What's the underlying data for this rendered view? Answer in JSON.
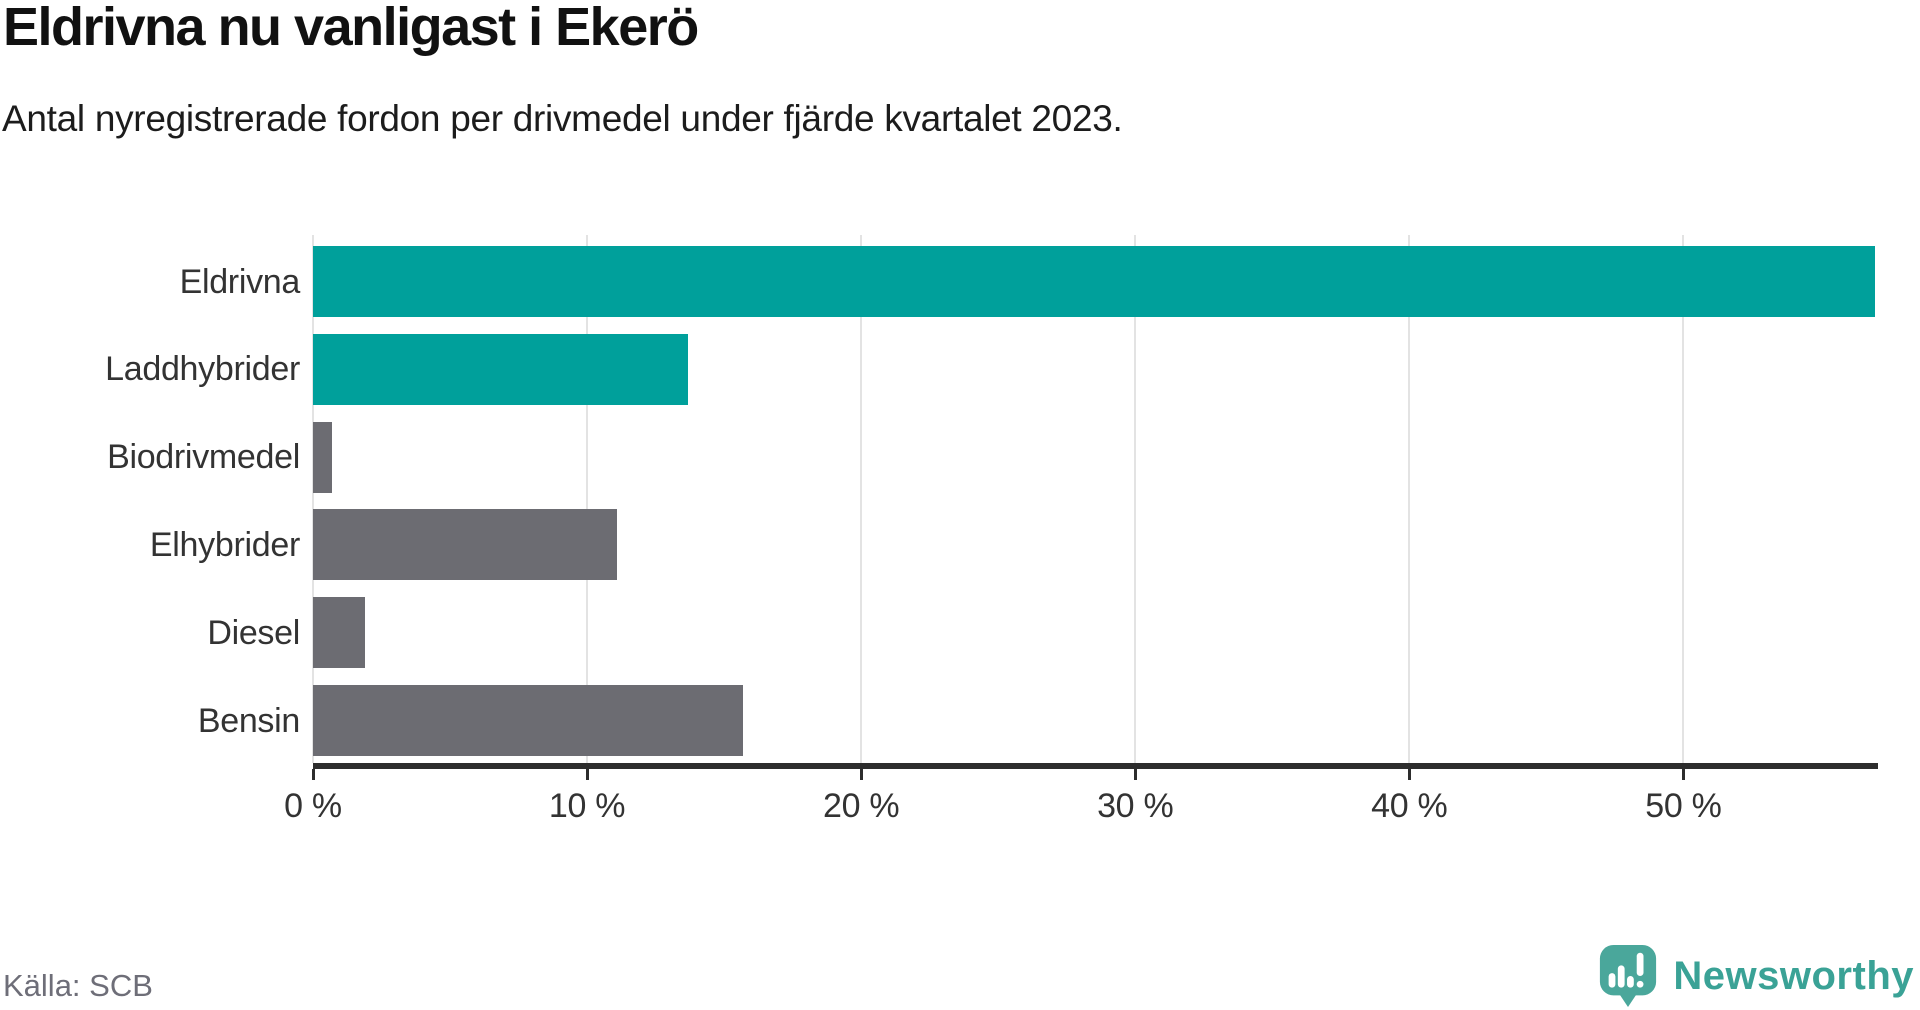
{
  "header": {
    "title": "Eldrivna nu vanligast i Ekerö",
    "subtitle": "Antal nyregistrerade fordon per drivmedel under fjärde kvartalet 2023."
  },
  "footer": {
    "source": "Källa: SCB",
    "brand": "Newsworthy"
  },
  "colors": {
    "accent_teal": "#00a09b",
    "muted_gray": "#6c6c72",
    "axis": "#2d2d2d",
    "gridline": "#e3e3e3",
    "text": "#333333",
    "source_text": "#6e6e78",
    "brand_text_teal": "#3aa296",
    "logo_teal": "#4aa79b"
  },
  "chart_data": {
    "type": "bar",
    "orientation": "horizontal",
    "title": "Eldrivna nu vanligast i Ekerö",
    "subtitle": "Antal nyregistrerade fordon per drivmedel under fjärde kvartalet 2023.",
    "categories": [
      "Eldrivna",
      "Laddhybrider",
      "Biodrivmedel",
      "Elhybrider",
      "Diesel",
      "Bensin"
    ],
    "values": [
      57.0,
      13.7,
      0.7,
      11.1,
      1.9,
      15.7
    ],
    "unit": "%",
    "bar_colors": [
      "#00a09b",
      "#00a09b",
      "#6c6c72",
      "#6c6c72",
      "#6c6c72",
      "#6c6c72"
    ],
    "xlabel": "",
    "ylabel": "",
    "x_ticks": [
      0,
      10,
      20,
      30,
      40,
      50
    ],
    "x_tick_labels": [
      "0 %",
      "10 %",
      "20 %",
      "30 %",
      "40 %",
      "50 %"
    ],
    "xlim": [
      0,
      57.1
    ],
    "grid": true,
    "legend": false
  }
}
